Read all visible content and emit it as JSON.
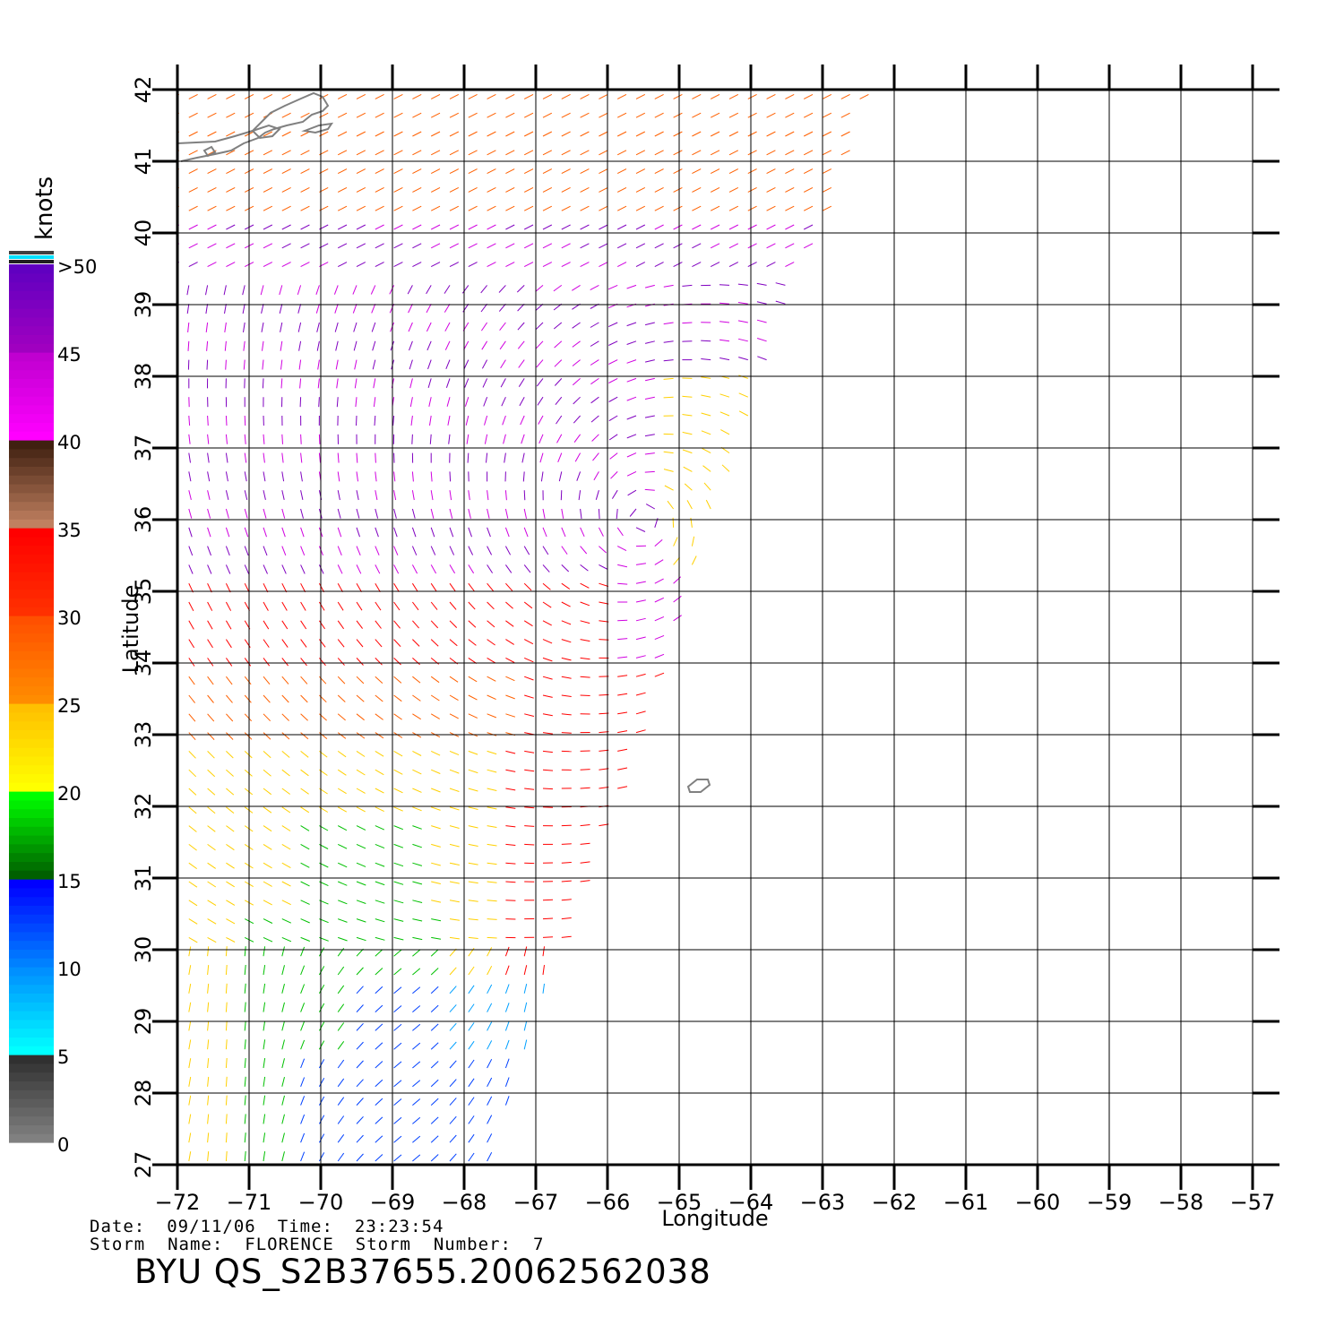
{
  "map": {
    "x_label": "Longitude",
    "y_label": "Latitude",
    "lon_ticks": [
      -72,
      -71,
      -70,
      -69,
      -68,
      -67,
      -66,
      -65,
      -64,
      -63,
      -62,
      -61,
      -60,
      -59,
      -58,
      -57
    ],
    "lat_ticks": [
      27,
      28,
      29,
      30,
      31,
      32,
      33,
      34,
      35,
      36,
      37,
      38,
      39,
      40,
      41,
      42
    ],
    "lon_range": [
      -72,
      -57
    ],
    "lat_range": [
      27,
      42
    ],
    "grid": true,
    "swath_edge": [
      [
        -62.4,
        42.0
      ],
      [
        -66.9,
        29.3
      ],
      [
        -67.6,
        27.0
      ]
    ],
    "colorbar": {
      "unit": "knots",
      "labels": [
        "0",
        "5",
        "10",
        "15",
        "20",
        "25",
        "30",
        "35",
        "40",
        "45",
        ">50"
      ],
      "stops": [
        {
          "from": 0,
          "to": 5,
          "colors": [
            "#808080",
            "#303030"
          ]
        },
        {
          "from": 5,
          "to": 10,
          "colors": [
            "#00ffff",
            "#0090ff"
          ]
        },
        {
          "from": 10,
          "to": 15,
          "colors": [
            "#0080ff",
            "#0000ff"
          ]
        },
        {
          "from": 15,
          "to": 20,
          "colors": [
            "#006000",
            "#00ff00"
          ]
        },
        {
          "from": 20,
          "to": 25,
          "colors": [
            "#ffff00",
            "#ffc000"
          ]
        },
        {
          "from": 25,
          "to": 30,
          "colors": [
            "#ff8c00",
            "#ff5000"
          ]
        },
        {
          "from": 30,
          "to": 35,
          "colors": [
            "#ff3000",
            "#ff0000"
          ]
        },
        {
          "from": 35,
          "to": 40,
          "colors": [
            "#c08060",
            "#402010"
          ]
        },
        {
          "from": 40,
          "to": 45,
          "colors": [
            "#ff00ff",
            "#c000d0"
          ]
        },
        {
          "from": 45,
          "to": 50,
          "colors": [
            "#a000c0",
            "#6000c0"
          ]
        }
      ],
      "top_swatches": [
        "#404040",
        "#00e0ff",
        "#202020"
      ]
    },
    "speed_colors": {
      "0-5": "#404040",
      "5-10": "#00a0ff",
      "10-15": "#0040ff",
      "15-20": "#00c000",
      "20-25": "#ffd000",
      "25-30": "#ff6000",
      "30-35": "#ff0000",
      "35-40": "#804020",
      "40-45": "#d000e0",
      "45-50": "#8000c0",
      ">50": "#5000a0"
    }
  },
  "info": {
    "date_label": "Date:",
    "date": "09/11/06",
    "time_label": "Time:",
    "time": "23:23:54",
    "storm_name_label": "Storm  Name:",
    "storm_name": "FLORENCE",
    "storm_number_label": "Storm  Number:",
    "storm_number": "7",
    "product_id": "BYU  QS_S2B37655.20062562038"
  }
}
